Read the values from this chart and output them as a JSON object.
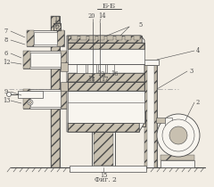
{
  "title": "Б-Б",
  "caption": "Фиг. 2",
  "bg_color": "#f2ede4",
  "line_color": "#4a4a4a",
  "hatch_fc": "#c8c0b0",
  "white": "#f8f5ef"
}
